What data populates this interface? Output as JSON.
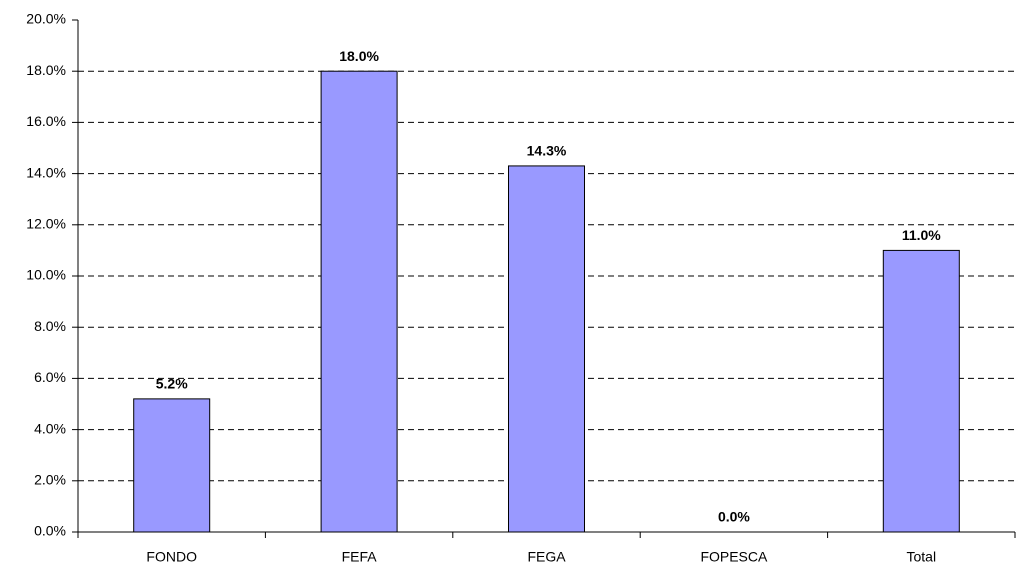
{
  "chart_data": {
    "type": "bar",
    "categories": [
      "FONDO",
      "FEFA",
      "FEGA",
      "FOPESCA",
      "Total"
    ],
    "values": [
      5.2,
      18.0,
      14.3,
      0.0,
      11.0
    ],
    "value_labels": [
      "5.2%",
      "18.0%",
      "14.3%",
      "0.0%",
      "11.0%"
    ],
    "color": "#9999ff",
    "ylim": [
      0,
      20
    ],
    "yticks": [
      {
        "value": 0,
        "label": "0.0%"
      },
      {
        "value": 2,
        "label": "2.0%"
      },
      {
        "value": 4,
        "label": "4.0%"
      },
      {
        "value": 6,
        "label": "6.0%"
      },
      {
        "value": 8,
        "label": "8.0%"
      },
      {
        "value": 10,
        "label": "10.0%"
      },
      {
        "value": 12,
        "label": "12.0%"
      },
      {
        "value": 14,
        "label": "14.0%"
      },
      {
        "value": 16,
        "label": "16.0%"
      },
      {
        "value": 18,
        "label": "18.0%"
      },
      {
        "value": 20,
        "label": "20.0%"
      }
    ],
    "grid": true
  }
}
